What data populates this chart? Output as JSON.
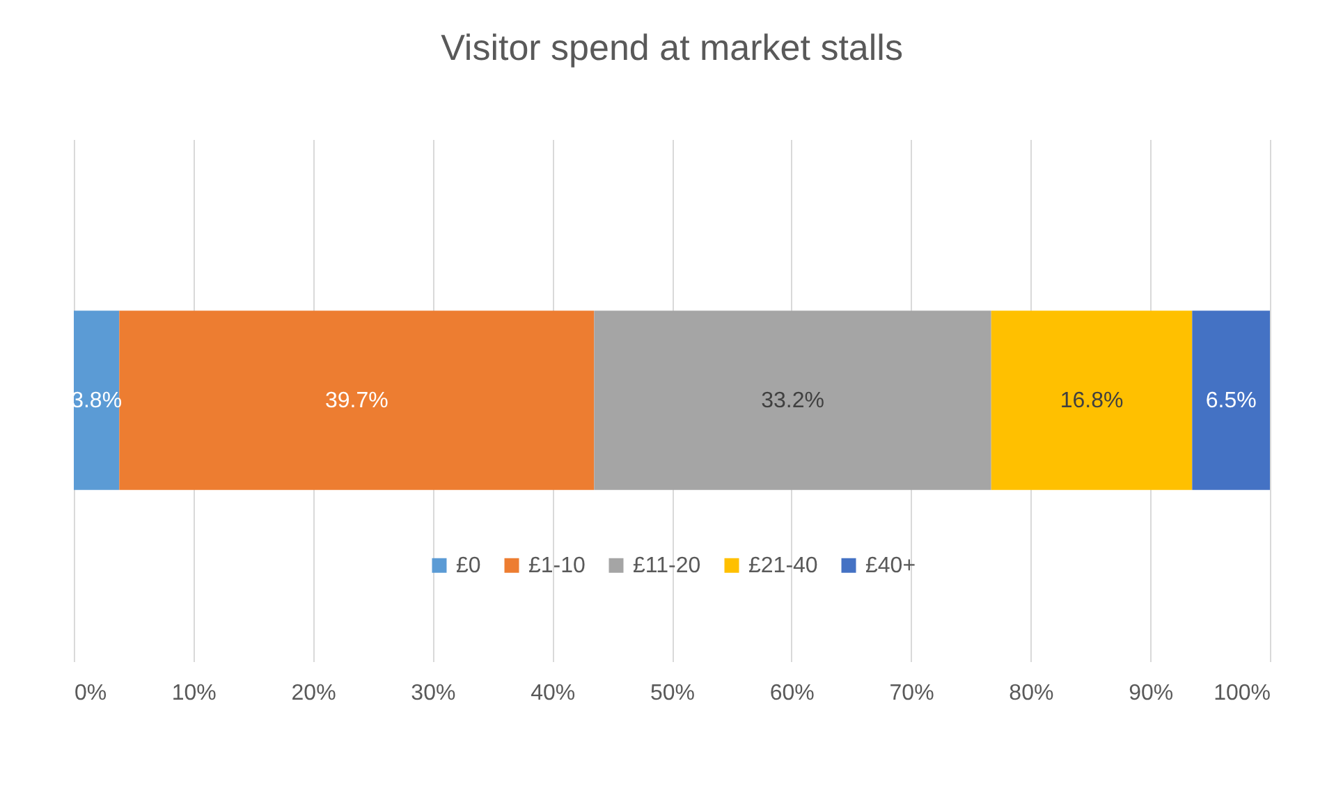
{
  "chart_data": {
    "type": "bar",
    "title": "Visitor spend at market stalls",
    "orientation": "horizontal",
    "stacked": true,
    "categories": [
      null
    ],
    "series": [
      {
        "name": "£0",
        "color": "#5b9bd5",
        "values": [
          3.8
        ],
        "value_labels": [
          "3.8%"
        ]
      },
      {
        "name": "£1-10",
        "color": "#ed7d31",
        "values": [
          39.7
        ],
        "value_labels": [
          "39.7%"
        ]
      },
      {
        "name": "£11-20",
        "color": "#a5a5a5",
        "values": [
          33.2
        ],
        "value_labels": [
          "33.2%"
        ]
      },
      {
        "name": "£21-40",
        "color": "#ffc000",
        "values": [
          16.8
        ],
        "value_labels": [
          "16.8%"
        ]
      },
      {
        "name": "£40+",
        "color": "#4472c4",
        "values": [
          6.5
        ],
        "value_labels": [
          "6.5%"
        ]
      }
    ],
    "xlim": [
      0,
      100
    ],
    "xticks": [
      {
        "value": 0,
        "label": "0%"
      },
      {
        "value": 10,
        "label": "10%"
      },
      {
        "value": 20,
        "label": "20%"
      },
      {
        "value": 30,
        "label": "30%"
      },
      {
        "value": 40,
        "label": "40%"
      },
      {
        "value": 50,
        "label": "50%"
      },
      {
        "value": 60,
        "label": "60%"
      },
      {
        "value": 70,
        "label": "70%"
      },
      {
        "value": 80,
        "label": "80%"
      },
      {
        "value": 90,
        "label": "90%"
      },
      {
        "value": 100,
        "label": "100%"
      }
    ],
    "grid": "x",
    "legend": "bottom"
  }
}
